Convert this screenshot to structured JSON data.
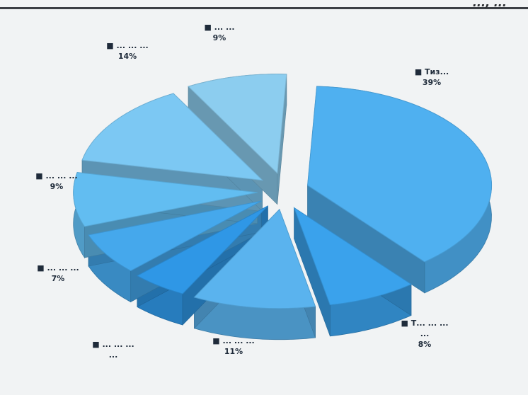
{
  "header": {
    "corner_text": "..., ..."
  },
  "chart_data": {
    "type": "pie",
    "title": "",
    "slices": [
      {
        "label": "Тиз...",
        "value": 39,
        "value_label": "39%",
        "color": "#4fb0f0"
      },
      {
        "label": "Т... ... ... ...",
        "value": 8,
        "value_label": "8%",
        "color": "#3aa2ec"
      },
      {
        "label": "... ... ...",
        "value": 11,
        "value_label": "11%",
        "color": "#5ab3ee"
      },
      {
        "label": "... ... ... ...",
        "value": 5,
        "value_label": "",
        "color": "#2f97e6"
      },
      {
        "label": "... ... ...",
        "value": 7,
        "value_label": "7%",
        "color": "#45a8ec"
      },
      {
        "label": "... ... ...",
        "value": 9,
        "value_label": "9%",
        "color": "#62bdf1"
      },
      {
        "label": "... ... ...",
        "value": 14,
        "value_label": "14%",
        "color": "#7cc8f3"
      },
      {
        "label": "... ...",
        "value": 9,
        "value_label": "9%",
        "color": "#8ccdef"
      }
    ],
    "legend": "none"
  }
}
